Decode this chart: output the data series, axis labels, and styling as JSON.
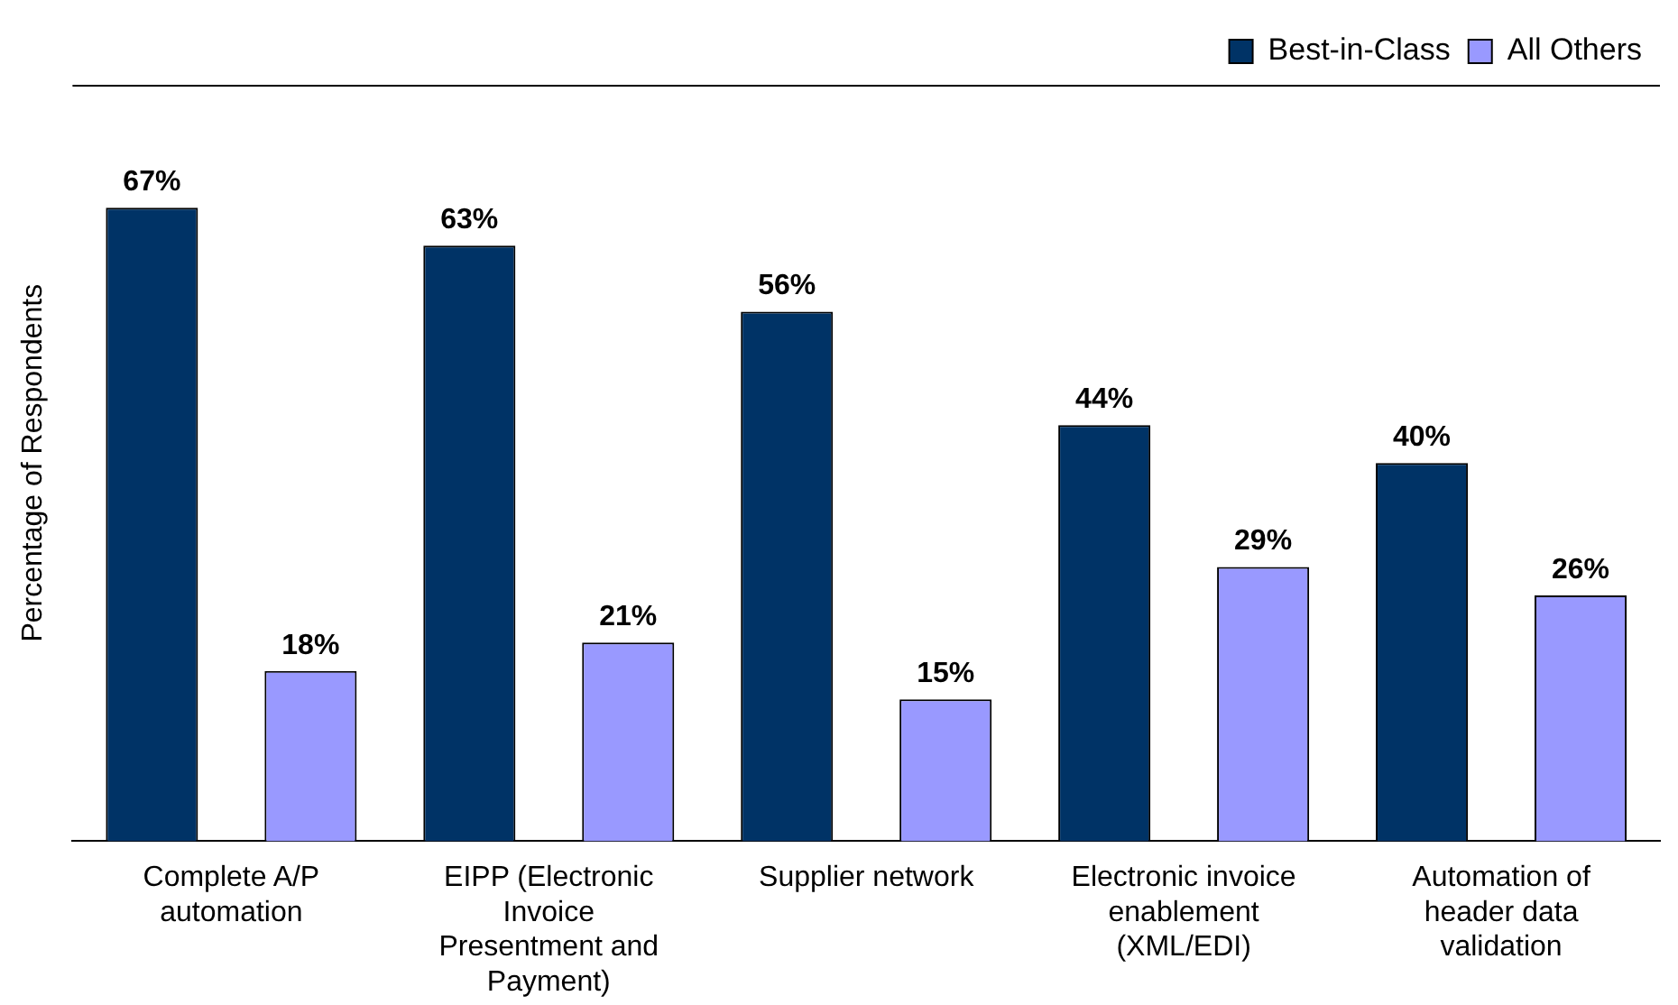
{
  "chart_data": {
    "type": "bar",
    "ylabel": "Percentage of Respondents",
    "categories": [
      "Complete A/P automation",
      "EIPP (Electronic Invoice Presentment and Payment)",
      "Supplier network",
      "Electronic invoice enablement (XML/EDI)",
      "Automation of header data validation"
    ],
    "series": [
      {
        "name": "Best-in-Class",
        "color": "#003366",
        "values": [
          67,
          63,
          56,
          44,
          40
        ],
        "value_labels": [
          "67%",
          "63%",
          "56%",
          "44%",
          "40%"
        ]
      },
      {
        "name": "All Others",
        "color": "#9999ff",
        "values": [
          18,
          21,
          15,
          29,
          26
        ],
        "value_labels": [
          "18%",
          "21%",
          "15%",
          "29%",
          "26%"
        ]
      }
    ],
    "legend": "top right",
    "grid": false,
    "tick_labels": "x"
  }
}
